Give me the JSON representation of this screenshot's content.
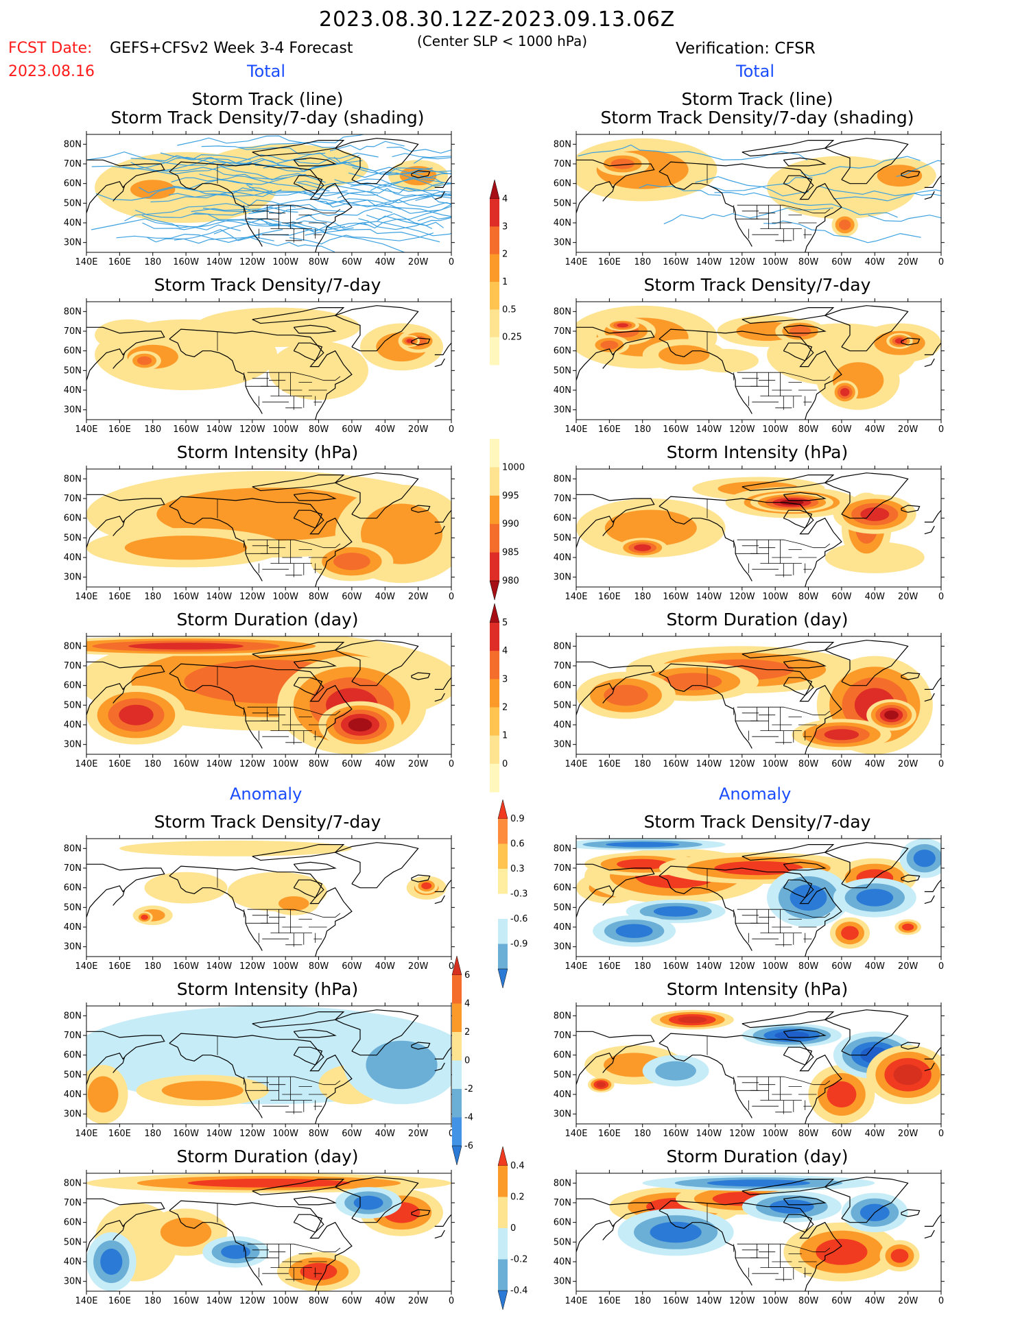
{
  "header": {
    "period": "2023.08.30.12Z-2023.09.13.06Z",
    "fcst_label": "FCST Date:",
    "fcst_date": "2023.08.16",
    "model": "GEFS+CFSv2 Week 3-4 Forecast",
    "criterion": "(Center SLP < 1000 hPa)",
    "verification": "Verification: CFSR"
  },
  "sections": {
    "total_left": "Total",
    "total_right": "Total",
    "anomaly_left": "Anomaly",
    "anomaly_right": "Anomaly"
  },
  "panel_titles": {
    "track_line": "Storm Track (line)",
    "track_density_shading": "Storm Track Density/7-day (shading)",
    "track_density": "Storm Track Density/7-day",
    "intensity": "Storm Intensity (hPa)",
    "duration": "Storm Duration (day)"
  },
  "axes": {
    "lat_labels": [
      "80N",
      "70N",
      "60N",
      "50N",
      "40N",
      "30N"
    ],
    "lon_labels": [
      "140E",
      "160E",
      "180",
      "160W",
      "140W",
      "120W",
      "100W",
      "80W",
      "60W",
      "40W",
      "20W",
      "0"
    ]
  },
  "colorbars": {
    "density_total": {
      "labels": [
        "4",
        "3",
        "2",
        "1",
        "0.5",
        "0.25"
      ],
      "colors": [
        "#a50f15",
        "#de2d26",
        "#f46d2a",
        "#fb9a29",
        "#fec44f",
        "#fee391",
        "#fff7bc"
      ]
    },
    "intensity_total": {
      "labels": [
        "1000",
        "995",
        "990",
        "985",
        "980"
      ],
      "colors": [
        "#fff7bc",
        "#fee391",
        "#fb9a29",
        "#f46d2a",
        "#de2d26",
        "#a50f15"
      ]
    },
    "duration_total": {
      "labels": [
        "5",
        "4",
        "3",
        "2",
        "1",
        "0"
      ],
      "colors": [
        "#a50f15",
        "#de2d26",
        "#f46d2a",
        "#fb9a29",
        "#fec44f",
        "#fee391",
        "#fff7bc"
      ]
    },
    "density_anom": {
      "labels": [
        "0.9",
        "0.6",
        "0.3",
        "-0.3",
        "-0.6",
        "-0.9"
      ],
      "colors": [
        "#f03b20",
        "#fd8d3c",
        "#fec44f",
        "#ffeda0",
        "#ffffff",
        "#c6ecf7",
        "#6baed6",
        "#2b7bd6"
      ]
    },
    "intensity_anom": {
      "labels": [
        "6",
        "4",
        "2",
        "0",
        "-2",
        "-4",
        "-6"
      ],
      "colors": [
        "#d7301f",
        "#f46d2a",
        "#fb9a29",
        "#fee391",
        "#c6ecf7",
        "#6baed6",
        "#4292e6",
        "#2b7bd6"
      ]
    },
    "duration_anom": {
      "labels": [
        "0.4",
        "0.2",
        "0",
        "-0.2",
        "-0.4"
      ],
      "colors": [
        "#f03b20",
        "#fb9a29",
        "#fee391",
        "#c6ecf7",
        "#6baed6",
        "#2b7bd6"
      ]
    }
  }
}
